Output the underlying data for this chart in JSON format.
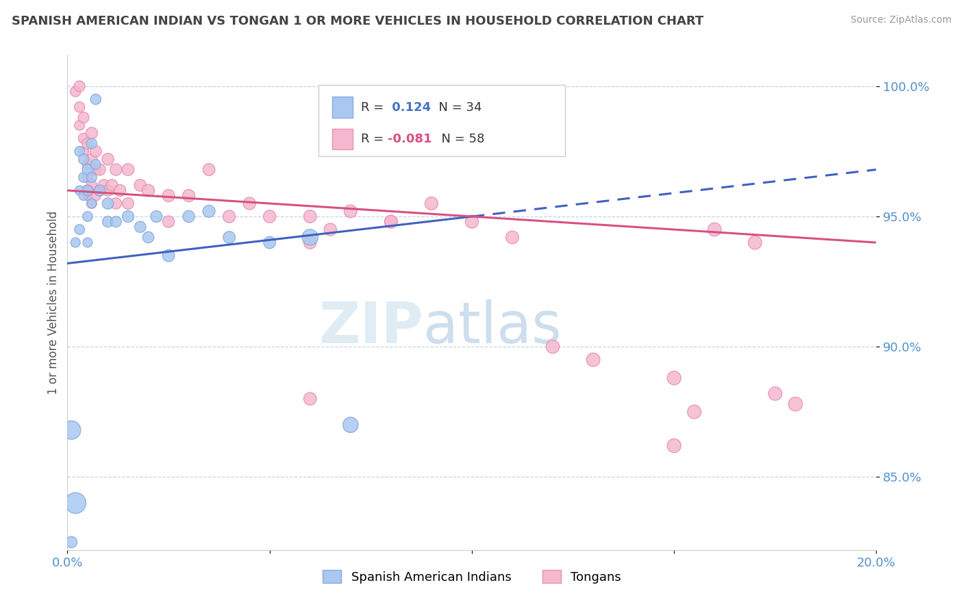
{
  "title": "SPANISH AMERICAN INDIAN VS TONGAN 1 OR MORE VEHICLES IN HOUSEHOLD CORRELATION CHART",
  "source": "Source: ZipAtlas.com",
  "ylabel": "1 or more Vehicles in Household",
  "xlim": [
    0.0,
    0.2
  ],
  "ylim": [
    0.822,
    1.012
  ],
  "xtick_positions": [
    0.0,
    0.05,
    0.1,
    0.15,
    0.2
  ],
  "xticklabels": [
    "0.0%",
    "",
    "",
    "",
    "20.0%"
  ],
  "ytick_positions": [
    0.85,
    0.9,
    0.95,
    1.0
  ],
  "yticklabels": [
    "85.0%",
    "90.0%",
    "95.0%",
    "100.0%"
  ],
  "blue_R": 0.124,
  "blue_N": 34,
  "pink_R": -0.081,
  "pink_N": 58,
  "blue_color": "#a8c8f0",
  "pink_color": "#f5b8cf",
  "blue_edge": "#88aadc",
  "pink_edge": "#e890b0",
  "blue_line_color": "#4060c0",
  "pink_line_color": "#d85080",
  "legend1_label": "Spanish American Indians",
  "legend2_label": "Tongans",
  "watermark_zip": "ZIP",
  "watermark_atlas": "atlas",
  "blue_scatter_x": [
    0.002,
    0.003,
    0.003,
    0.003,
    0.004,
    0.004,
    0.004,
    0.005,
    0.005,
    0.005,
    0.005,
    0.006,
    0.006,
    0.006,
    0.007,
    0.007,
    0.008,
    0.01,
    0.01,
    0.012,
    0.015,
    0.018,
    0.02,
    0.022,
    0.025,
    0.03,
    0.035,
    0.04,
    0.05,
    0.06,
    0.07,
    0.001,
    0.002,
    0.001
  ],
  "blue_scatter_y": [
    0.94,
    0.975,
    0.96,
    0.945,
    0.972,
    0.965,
    0.958,
    0.968,
    0.96,
    0.95,
    0.94,
    0.978,
    0.965,
    0.955,
    0.995,
    0.97,
    0.96,
    0.955,
    0.948,
    0.948,
    0.95,
    0.946,
    0.942,
    0.95,
    0.935,
    0.95,
    0.952,
    0.942,
    0.94,
    0.942,
    0.87,
    0.868,
    0.84,
    0.825
  ],
  "blue_scatter_sizes": [
    100,
    110,
    100,
    110,
    120,
    110,
    100,
    130,
    120,
    110,
    100,
    120,
    110,
    100,
    120,
    110,
    130,
    140,
    130,
    130,
    150,
    140,
    140,
    150,
    160,
    155,
    165,
    160,
    160,
    280,
    260,
    380,
    480,
    140
  ],
  "pink_scatter_x": [
    0.002,
    0.003,
    0.003,
    0.004,
    0.004,
    0.004,
    0.005,
    0.005,
    0.005,
    0.005,
    0.006,
    0.006,
    0.006,
    0.006,
    0.007,
    0.007,
    0.007,
    0.008,
    0.008,
    0.009,
    0.01,
    0.01,
    0.011,
    0.012,
    0.012,
    0.013,
    0.015,
    0.015,
    0.018,
    0.02,
    0.025,
    0.025,
    0.03,
    0.035,
    0.04,
    0.045,
    0.05,
    0.06,
    0.065,
    0.07,
    0.08,
    0.09,
    0.1,
    0.11,
    0.12,
    0.13,
    0.15,
    0.16,
    0.17,
    0.175,
    0.003,
    0.005,
    0.06,
    0.08,
    0.15,
    0.155,
    0.06,
    0.18
  ],
  "pink_scatter_y": [
    0.998,
    0.992,
    0.985,
    0.988,
    0.98,
    0.975,
    0.978,
    0.97,
    0.965,
    0.958,
    0.982,
    0.972,
    0.962,
    0.955,
    0.975,
    0.968,
    0.958,
    0.968,
    0.96,
    0.962,
    0.972,
    0.96,
    0.962,
    0.968,
    0.955,
    0.96,
    0.968,
    0.955,
    0.962,
    0.96,
    0.958,
    0.948,
    0.958,
    0.968,
    0.95,
    0.955,
    0.95,
    0.95,
    0.945,
    0.952,
    0.948,
    0.955,
    0.948,
    0.942,
    0.9,
    0.895,
    0.888,
    0.945,
    0.94,
    0.882,
    1.0,
    0.96,
    0.94,
    0.948,
    0.862,
    0.875,
    0.88,
    0.878
  ],
  "pink_scatter_sizes": [
    120,
    120,
    110,
    130,
    120,
    110,
    140,
    130,
    120,
    110,
    150,
    135,
    120,
    110,
    145,
    132,
    118,
    148,
    135,
    148,
    155,
    140,
    150,
    155,
    140,
    150,
    160,
    145,
    158,
    165,
    168,
    152,
    168,
    162,
    170,
    168,
    172,
    178,
    172,
    180,
    180,
    185,
    188,
    182,
    195,
    200,
    205,
    198,
    202,
    200,
    130,
    140,
    175,
    182,
    210,
    205,
    178,
    215
  ]
}
